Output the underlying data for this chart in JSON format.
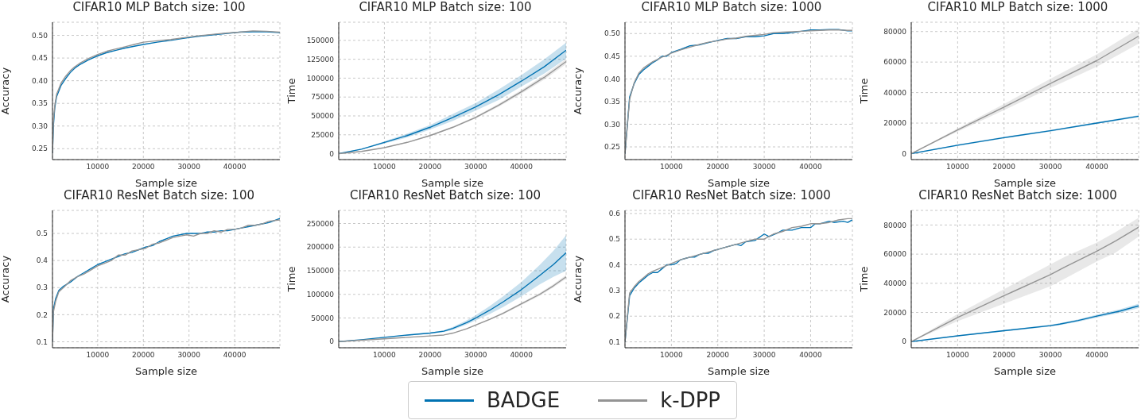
{
  "chart_data": [
    {
      "type": "line",
      "title": "CIFAR10 MLP Batch size: 100",
      "xlabel": "Sample size",
      "ylabel": "Accuracy",
      "grid": true,
      "legend": "bottom",
      "xlim": [
        100,
        49900
      ],
      "xticks": [
        10000,
        20000,
        30000,
        40000
      ],
      "ylim": [
        0.226,
        0.529
      ],
      "yticks": [
        0.25,
        {
          "value": 0.3,
          "label": "0.30"
        },
        0.35,
        {
          "value": 0.4,
          "label": "0.40"
        },
        0.45,
        {
          "value": 0.5,
          "label": "0.50"
        }
      ],
      "series": [
        {
          "name": "BADGE",
          "color": "#0072b2",
          "x": [
            100,
            300,
            600,
            1000,
            2000,
            3000,
            4000,
            5000,
            6000,
            8000,
            10000,
            12000,
            14000,
            16000,
            18000,
            20000,
            23000,
            26000,
            29000,
            32000,
            35000,
            38000,
            41000,
            44000,
            47000,
            49900
          ],
          "values": [
            0.24,
            0.3,
            0.34,
            0.365,
            0.39,
            0.405,
            0.418,
            0.428,
            0.435,
            0.446,
            0.455,
            0.462,
            0.467,
            0.472,
            0.476,
            0.48,
            0.485,
            0.489,
            0.494,
            0.498,
            0.501,
            0.504,
            0.507,
            0.508,
            0.508,
            0.506
          ]
        },
        {
          "name": "k-DPP",
          "color": "#949494",
          "x": [
            100,
            300,
            600,
            1000,
            2000,
            3000,
            4000,
            5000,
            6000,
            8000,
            10000,
            12000,
            14000,
            16000,
            18000,
            20000,
            23000,
            26000,
            29000,
            32000,
            35000,
            38000,
            41000,
            44000,
            47000,
            49900
          ],
          "values": [
            0.24,
            0.31,
            0.345,
            0.37,
            0.395,
            0.41,
            0.422,
            0.431,
            0.438,
            0.449,
            0.458,
            0.465,
            0.47,
            0.475,
            0.48,
            0.485,
            0.488,
            0.491,
            0.495,
            0.499,
            0.502,
            0.505,
            0.507,
            0.51,
            0.509,
            0.507
          ]
        }
      ]
    },
    {
      "type": "line",
      "title": "CIFAR10 MLP Batch size: 100",
      "xlabel": "Sample size",
      "ylabel": "Time",
      "grid": true,
      "xlim": [
        0,
        49800
      ],
      "xticks": [
        10000,
        20000,
        30000,
        40000
      ],
      "ylim": [
        -7800,
        174000
      ],
      "yticks": [
        0,
        25000,
        50000,
        75000,
        100000,
        125000,
        150000
      ],
      "series": [
        {
          "color": "#0072b2",
          "x": [
            0,
            5000,
            10000,
            15000,
            20000,
            25000,
            30000,
            35000,
            40000,
            45000,
            49800
          ],
          "values": [
            0,
            6000,
            15000,
            24000,
            35000,
            48000,
            62000,
            78000,
            96000,
            115000,
            137000
          ],
          "lower": [
            0,
            5500,
            13500,
            21500,
            32000,
            43500,
            57000,
            71000,
            89000,
            106000,
            126000
          ],
          "upper": [
            0,
            6500,
            16500,
            26500,
            38000,
            52500,
            67000,
            85000,
            104000,
            125000,
            147000
          ]
        },
        {
          "color": "#949494",
          "x": [
            0,
            5000,
            10000,
            15000,
            20000,
            25000,
            30000,
            35000,
            40000,
            45000,
            49800
          ],
          "values": [
            0,
            3000,
            8000,
            15000,
            24000,
            35000,
            48000,
            64000,
            82000,
            101000,
            122000
          ],
          "lower": [
            0,
            3300,
            7600,
            14400,
            23200,
            34000,
            46600,
            62000,
            79500,
            98000,
            118500
          ],
          "upper": [
            0,
            3700,
            8400,
            15600,
            24800,
            36000,
            49400,
            66000,
            84500,
            104000,
            125500
          ]
        }
      ]
    },
    {
      "type": "line",
      "title": "CIFAR10 MLP Batch size: 1000",
      "xlabel": "Sample size",
      "ylabel": "Accuracy",
      "grid": true,
      "xlim": [
        0,
        49000
      ],
      "xticks": [
        10000,
        20000,
        30000,
        40000
      ],
      "ylim": [
        0.222,
        0.525
      ],
      "yticks": [
        0.25,
        {
          "value": 0.3,
          "label": "0.30"
        },
        0.35,
        {
          "value": 0.4,
          "label": "0.40"
        },
        0.45,
        {
          "value": 0.5,
          "label": "0.50"
        }
      ],
      "series": [
        {
          "color": "#0072b2",
          "x": [
            0,
            1000,
            2000,
            3000,
            4000,
            5000,
            6000,
            7000,
            8000,
            9000,
            10000,
            12000,
            14000,
            16000,
            18000,
            20000,
            22000,
            24000,
            26000,
            28000,
            30000,
            32000,
            34000,
            36000,
            38000,
            40000,
            42000,
            44000,
            46000,
            48000,
            49000
          ],
          "values": [
            0.235,
            0.36,
            0.39,
            0.41,
            0.42,
            0.428,
            0.436,
            0.442,
            0.45,
            0.45,
            0.458,
            0.465,
            0.473,
            0.475,
            0.48,
            0.485,
            0.489,
            0.489,
            0.493,
            0.493,
            0.495,
            0.5,
            0.5,
            0.502,
            0.505,
            0.508,
            0.508,
            0.509,
            0.509,
            0.506,
            0.506
          ]
        },
        {
          "color": "#949494",
          "x": [
            0,
            1000,
            2000,
            3000,
            4000,
            5000,
            6000,
            7000,
            8000,
            9000,
            10000,
            12000,
            14000,
            16000,
            18000,
            20000,
            22000,
            24000,
            26000,
            28000,
            30000,
            32000,
            34000,
            36000,
            38000,
            40000,
            42000,
            44000,
            46000,
            48000,
            49000
          ],
          "values": [
            0.235,
            0.355,
            0.392,
            0.413,
            0.424,
            0.431,
            0.438,
            0.443,
            0.448,
            0.452,
            0.457,
            0.464,
            0.47,
            0.476,
            0.481,
            0.484,
            0.488,
            0.49,
            0.494,
            0.496,
            0.498,
            0.502,
            0.503,
            0.504,
            0.505,
            0.506,
            0.507,
            0.508,
            0.508,
            0.507,
            0.507
          ]
        }
      ]
    },
    {
      "type": "line",
      "title": "CIFAR10 MLP Batch size: 1000",
      "xlabel": "Sample size",
      "ylabel": "Time",
      "grid": true,
      "xlim": [
        0,
        49000
      ],
      "xticks": [
        10000,
        20000,
        30000,
        40000
      ],
      "ylim": [
        -3900,
        86100
      ],
      "yticks": [
        0,
        20000,
        40000,
        60000,
        80000
      ],
      "series": [
        {
          "color": "#0072b2",
          "x": [
            0,
            10000,
            20000,
            30000,
            40000,
            49000
          ],
          "values": [
            0,
            5500,
            10500,
            15000,
            20000,
            24500
          ],
          "lower": [
            0,
            5000,
            10000,
            14500,
            19500,
            23800
          ],
          "upper": [
            0,
            6000,
            11000,
            15500,
            20500,
            25200
          ]
        },
        {
          "color": "#949494",
          "x": [
            0,
            10000,
            20000,
            30000,
            40000,
            49000
          ],
          "values": [
            0,
            15500,
            30500,
            46000,
            61000,
            77000
          ],
          "lower": [
            0,
            14500,
            28500,
            43000,
            57000,
            72000
          ],
          "upper": [
            0,
            16500,
            32500,
            49000,
            65000,
            82000
          ]
        }
      ]
    },
    {
      "type": "line",
      "title": "CIFAR10 ResNet Batch size: 100",
      "xlabel": "Sample size",
      "ylabel": "Accuracy",
      "grid": true,
      "xlim": [
        100,
        49900
      ],
      "xticks": [
        10000,
        20000,
        30000,
        40000
      ],
      "ylim": [
        0.078,
        0.585
      ],
      "yticks": [
        0.1,
        0.2,
        0.3,
        0.4,
        0.5
      ],
      "series": [
        {
          "color": "#0072b2",
          "x": [
            100,
            300,
            800,
            1500,
            2500,
            4000,
            5500,
            7000,
            8500,
            10000,
            11500,
            13000,
            14500,
            16000,
            17500,
            19000,
            20500,
            22000,
            23500,
            25000,
            26500,
            28000,
            29500,
            31000,
            32500,
            34000,
            35500,
            37000,
            38500,
            40000,
            41500,
            43000,
            44500,
            46000,
            47500,
            49900
          ],
          "values": [
            0.1,
            0.22,
            0.26,
            0.29,
            0.305,
            0.32,
            0.34,
            0.355,
            0.37,
            0.385,
            0.395,
            0.405,
            0.415,
            0.425,
            0.43,
            0.44,
            0.45,
            0.455,
            0.47,
            0.48,
            0.49,
            0.495,
            0.5,
            0.5,
            0.5,
            0.505,
            0.505,
            0.51,
            0.51,
            0.515,
            0.52,
            0.525,
            0.53,
            0.535,
            0.54,
            0.555
          ]
        },
        {
          "color": "#949494",
          "x": [
            100,
            300,
            800,
            1500,
            2500,
            4000,
            5500,
            7000,
            8500,
            10000,
            11500,
            13000,
            14500,
            16000,
            17500,
            19000,
            20500,
            22000,
            23500,
            25000,
            26500,
            28000,
            29500,
            31000,
            32500,
            34000,
            35500,
            37000,
            38500,
            40000,
            41500,
            43000,
            44500,
            46000,
            47500,
            49900
          ],
          "values": [
            0.1,
            0.21,
            0.25,
            0.285,
            0.3,
            0.325,
            0.34,
            0.35,
            0.365,
            0.38,
            0.39,
            0.4,
            0.42,
            0.42,
            0.435,
            0.44,
            0.445,
            0.46,
            0.465,
            0.475,
            0.485,
            0.49,
            0.495,
            0.49,
            0.5,
            0.5,
            0.51,
            0.505,
            0.515,
            0.515,
            0.52,
            0.53,
            0.53,
            0.535,
            0.545,
            0.55
          ]
        }
      ]
    },
    {
      "type": "line",
      "title": "CIFAR10 ResNet Batch size: 100",
      "xlabel": "Sample size",
      "ylabel": "Time",
      "grid": true,
      "xlim": [
        0,
        49800
      ],
      "xticks": [
        10000,
        20000,
        30000,
        40000
      ],
      "ylim": [
        -13000,
        277700
      ],
      "yticks": [
        0,
        50000,
        100000,
        150000,
        200000,
        250000
      ],
      "series": [
        {
          "color": "#0072b2",
          "x": [
            0,
            5000,
            10000,
            15000,
            20000,
            23000,
            25000,
            28000,
            30000,
            33000,
            36000,
            40000,
            44000,
            47000,
            49800
          ],
          "values": [
            0,
            4000,
            9000,
            14000,
            18000,
            22000,
            28000,
            40000,
            50000,
            66000,
            84000,
            110000,
            140000,
            163000,
            188000
          ],
          "lower": [
            0,
            3600,
            8200,
            12500,
            16500,
            20000,
            25000,
            36000,
            45000,
            58000,
            73000,
            96000,
            121000,
            137000,
            150000
          ],
          "upper": [
            0,
            4400,
            9800,
            14500,
            19500,
            24000,
            31000,
            45000,
            56000,
            75000,
            96000,
            126000,
            162000,
            192000,
            225000
          ]
        },
        {
          "color": "#949494",
          "x": [
            0,
            5000,
            10000,
            15000,
            20000,
            23000,
            25000,
            28000,
            30000,
            33000,
            36000,
            40000,
            44000,
            47000,
            49800
          ],
          "values": [
            0,
            3000,
            6000,
            9000,
            12000,
            14000,
            18000,
            27000,
            35000,
            47000,
            60000,
            80000,
            100000,
            118000,
            137000
          ],
          "lower": [
            0,
            2900,
            5800,
            8200,
            11100,
            13000,
            17400,
            26000,
            33800,
            45500,
            58000,
            77500,
            97000,
            114500,
            133000
          ],
          "upper": [
            0,
            3100,
            6200,
            8800,
            11900,
            14000,
            18600,
            28000,
            36200,
            48500,
            62000,
            82500,
            103000,
            121500,
            141000
          ]
        }
      ]
    },
    {
      "type": "line",
      "title": "CIFAR10 ResNet Batch size: 1000",
      "xlabel": "Sample size",
      "ylabel": "Accuracy",
      "grid": true,
      "xlim": [
        0,
        49000
      ],
      "xticks": [
        10000,
        20000,
        30000,
        40000
      ],
      "ylim": [
        0.077,
        0.612
      ],
      "yticks": [
        0.1,
        0.2,
        0.3,
        0.4,
        0.5,
        0.6
      ],
      "series": [
        {
          "color": "#0072b2",
          "x": [
            0,
            1000,
            2000,
            3000,
            4000,
            5000,
            6000,
            7000,
            8000,
            9000,
            10000,
            11000,
            12000,
            13000,
            14000,
            15000,
            16000,
            17000,
            18000,
            19000,
            20000,
            22000,
            24000,
            25000,
            26000,
            28000,
            30000,
            31000,
            33000,
            34000,
            36000,
            38000,
            40000,
            41000,
            42000,
            44000,
            45000,
            47000,
            48000,
            49000
          ],
          "values": [
            0.1,
            0.28,
            0.31,
            0.33,
            0.345,
            0.36,
            0.37,
            0.37,
            0.385,
            0.4,
            0.4,
            0.405,
            0.42,
            0.425,
            0.43,
            0.43,
            0.44,
            0.445,
            0.445,
            0.455,
            0.46,
            0.47,
            0.48,
            0.475,
            0.49,
            0.495,
            0.52,
            0.51,
            0.525,
            0.535,
            0.535,
            0.545,
            0.545,
            0.56,
            0.56,
            0.57,
            0.565,
            0.57,
            0.565,
            0.575
          ]
        },
        {
          "color": "#949494",
          "x": [
            0,
            1000,
            2000,
            3000,
            4000,
            5000,
            6000,
            8000,
            10000,
            12000,
            14000,
            16000,
            18000,
            20000,
            22000,
            24000,
            26000,
            28000,
            30000,
            32000,
            34000,
            36000,
            38000,
            40000,
            42000,
            44000,
            46000,
            48000,
            49000
          ],
          "values": [
            0.1,
            0.29,
            0.315,
            0.335,
            0.35,
            0.365,
            0.375,
            0.39,
            0.405,
            0.42,
            0.43,
            0.44,
            0.45,
            0.46,
            0.47,
            0.48,
            0.49,
            0.5,
            0.5,
            0.52,
            0.53,
            0.545,
            0.55,
            0.56,
            0.56,
            0.565,
            0.575,
            0.58,
            0.58
          ]
        }
      ]
    },
    {
      "type": "line",
      "title": "CIFAR10 ResNet Batch size: 1000",
      "xlabel": "Sample size",
      "ylabel": "Time",
      "grid": true,
      "xlim": [
        0,
        49000
      ],
      "xticks": [
        10000,
        20000,
        30000,
        40000
      ],
      "ylim": [
        -4200,
        90000
      ],
      "yticks": [
        0,
        20000,
        40000,
        60000,
        80000
      ],
      "series": [
        {
          "color": "#0072b2",
          "x": [
            0,
            10000,
            20000,
            30000,
            32000,
            36000,
            40000,
            45000,
            49000
          ],
          "values": [
            0,
            4000,
            7500,
            11000,
            12000,
            14500,
            17500,
            21000,
            24500
          ],
          "lower": [
            0,
            3700,
            7000,
            10400,
            11300,
            13700,
            16500,
            19800,
            23000
          ],
          "upper": [
            0,
            4300,
            8000,
            11600,
            12700,
            15300,
            18500,
            22200,
            26000
          ]
        },
        {
          "color": "#949494",
          "x": [
            0,
            10000,
            20000,
            30000,
            33000,
            40000,
            44000,
            49000
          ],
          "values": [
            0,
            16500,
            31500,
            46000,
            51000,
            62000,
            69000,
            78500
          ],
          "lower": [
            0,
            14000,
            26000,
            38000,
            43000,
            55000,
            61000,
            72000
          ],
          "upper": [
            0,
            19000,
            36000,
            53000,
            58000,
            68000,
            75000,
            85000
          ]
        }
      ]
    }
  ]
}
